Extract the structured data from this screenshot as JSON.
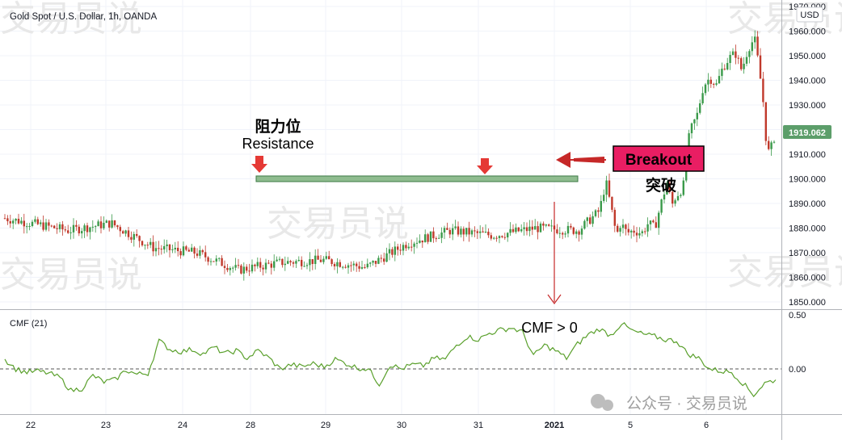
{
  "header": {
    "title": "Gold Spot / U.S. Dollar, 1h, OANDA",
    "currency": "USD",
    "last_price": "1919.062"
  },
  "annotations": {
    "resistance_cn": "阻力位",
    "resistance_en": "Resistance",
    "breakout_en": "Breakout",
    "breakout_cn": "突破",
    "cmf_note": "CMF > 0"
  },
  "indicator": {
    "name": "CMF (21)"
  },
  "watermark": {
    "text": "交易员说",
    "footer": "公众号 · 交易员说"
  },
  "chart_data": [
    {
      "type": "candlestick",
      "title": "Gold Spot / U.S. Dollar, 1h, OANDA",
      "y_axis": {
        "ticks": [
          "1970.000",
          "1960.000",
          "1950.000",
          "1940.000",
          "1930.000",
          "1920.000",
          "1910.000",
          "1900.000",
          "1890.000",
          "1880.000",
          "1870.000",
          "1860.000",
          "1850.000"
        ],
        "ylim": [
          1848,
          1970
        ]
      },
      "x_axis": {
        "ticks": [
          "22",
          "23",
          "24",
          "28",
          "29",
          "30",
          "31",
          "2021",
          "5",
          "6"
        ]
      },
      "resistance_level": 1900,
      "series_close_path": [
        [
          0,
          1884
        ],
        [
          3,
          1879
        ],
        [
          5,
          1882
        ],
        [
          7,
          1872
        ],
        [
          9,
          1870
        ],
        [
          11,
          1863
        ],
        [
          13,
          1866
        ],
        [
          15,
          1867
        ],
        [
          17,
          1864
        ],
        [
          19,
          1874
        ],
        [
          21,
          1879
        ],
        [
          23,
          1877
        ],
        [
          25,
          1880
        ],
        [
          27,
          1879
        ],
        [
          28,
          1887
        ],
        [
          28.3,
          1899
        ],
        [
          28.6,
          1886
        ],
        [
          28.8,
          1877
        ],
        [
          29,
          1882
        ],
        [
          29.3,
          1878
        ],
        [
          29.6,
          1879
        ],
        [
          30,
          1878
        ],
        [
          30.3,
          1882
        ],
        [
          30.6,
          1880
        ],
        [
          30.9,
          1890
        ],
        [
          31.2,
          1899
        ],
        [
          31.4,
          1889
        ],
        [
          31.6,
          1893
        ],
        [
          31.8,
          1895
        ],
        [
          31.95,
          1897
        ],
        [
          32.1,
          1912
        ],
        [
          32.3,
          1920
        ],
        [
          32.6,
          1926
        ],
        [
          32.9,
          1938
        ],
        [
          33.2,
          1941
        ],
        [
          33.5,
          1938
        ],
        [
          33.8,
          1945
        ],
        [
          34.1,
          1949
        ],
        [
          34.4,
          1951
        ],
        [
          34.7,
          1944
        ],
        [
          35.0,
          1953
        ],
        [
          35.3,
          1957
        ],
        [
          35.5,
          1946
        ],
        [
          35.7,
          1932
        ],
        [
          35.9,
          1910
        ],
        [
          36.1,
          1913
        ],
        [
          36.3,
          1919
        ]
      ]
    },
    {
      "type": "line",
      "title": "CMF (21)",
      "y_axis": {
        "ticks": [
          "0.50",
          "0.00"
        ],
        "ylim": [
          -0.38,
          0.5
        ]
      },
      "zero_line": "dashed",
      "series": [
        {
          "values": [
            0.09,
            0.0,
            -0.03,
            -0.02,
            -0.04,
            -0.08,
            -0.2,
            -0.18,
            -0.06,
            -0.12,
            -0.1,
            -0.01,
            -0.05,
            -0.04,
            0.26,
            0.18,
            0.16,
            0.18,
            0.14,
            0.2,
            0.14,
            0.17,
            0.1,
            0.17,
            0.1,
            0.0,
            0.04,
            0.02,
            0.05,
            0.02,
            0.09,
            0.05,
            0.01,
            0.0,
            -0.14,
            0.04,
            0.0,
            0.04,
            0.03,
            0.1,
            0.09,
            0.22,
            0.3,
            0.27,
            0.33,
            0.36,
            0.38,
            0.34,
            0.12,
            0.22,
            0.17,
            0.1,
            0.23,
            0.32,
            0.37,
            0.31,
            0.42,
            0.35,
            0.32,
            0.3,
            0.27,
            0.26,
            0.14,
            0.1,
            0.0,
            -0.02,
            -0.03,
            -0.13,
            -0.24,
            -0.13,
            -0.1
          ]
        }
      ]
    }
  ]
}
